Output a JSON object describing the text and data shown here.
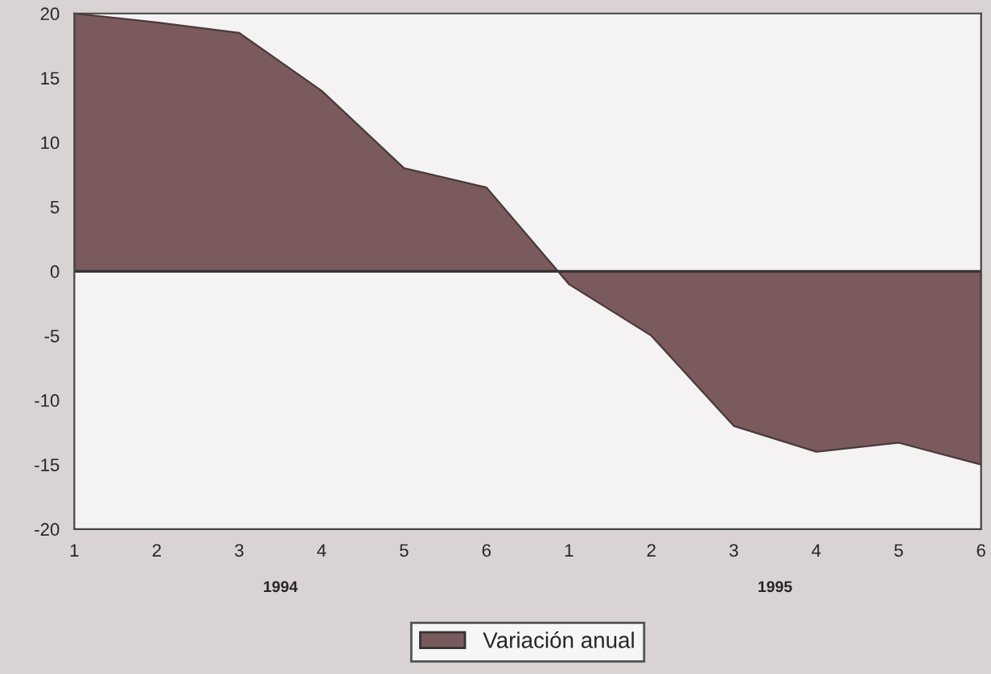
{
  "chart_data": {
    "type": "area",
    "categories": [
      "1",
      "2",
      "3",
      "4",
      "5",
      "6",
      "1",
      "2",
      "3",
      "4",
      "5",
      "6"
    ],
    "series": [
      {
        "name": "Variación anual",
        "color": "#7a5a5c",
        "values": [
          20,
          19.3,
          18.5,
          14,
          8,
          6.5,
          -1,
          -5,
          -12,
          -14,
          -13.3,
          -15
        ]
      }
    ],
    "ylim": [
      -20,
      20
    ],
    "yticks": [
      -20,
      -15,
      -10,
      -5,
      0,
      5,
      10,
      15,
      20
    ],
    "annotations": [
      "1994",
      "1995"
    ],
    "ref_lines": [
      {
        "axis": "y",
        "value": 0,
        "color": "#333333"
      }
    ],
    "grid": false,
    "legend": "bottom"
  }
}
